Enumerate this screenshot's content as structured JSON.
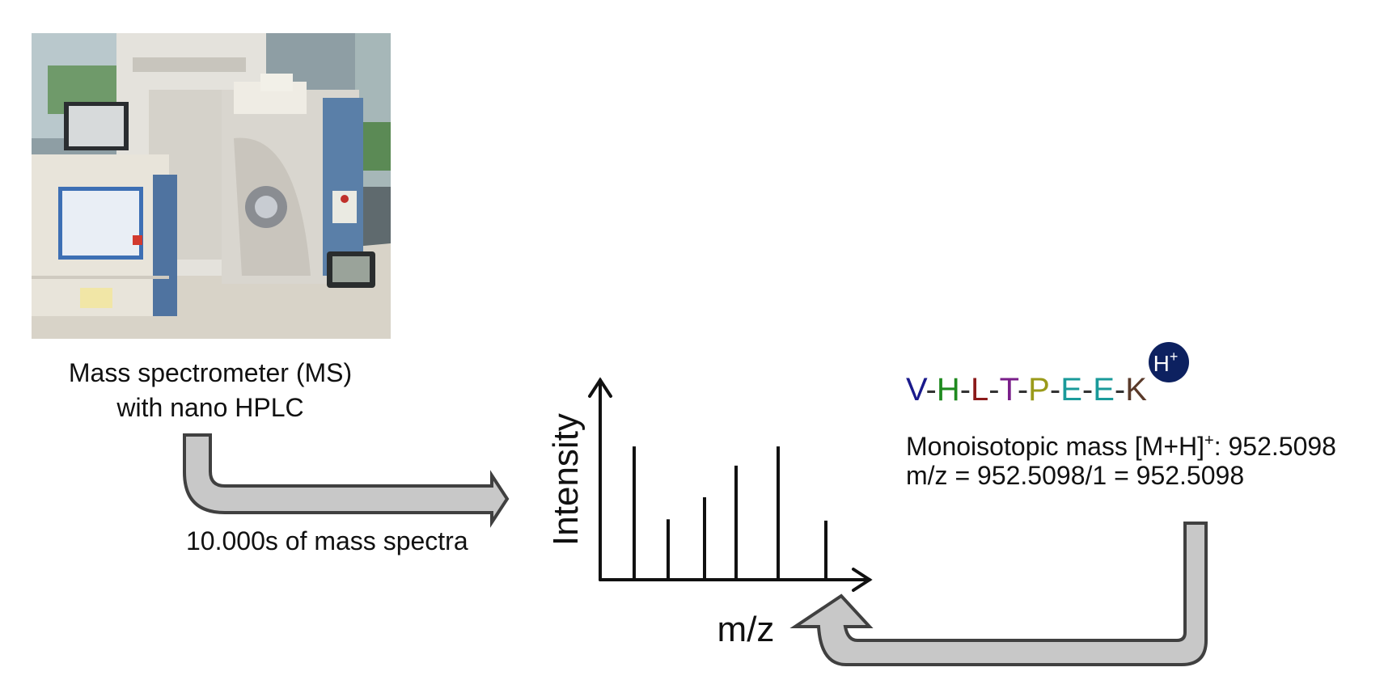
{
  "ms_caption": {
    "line1": "Mass spectrometer (MS)",
    "line2": "with nano HPLC"
  },
  "spectra_caption": "10.000s of mass spectra",
  "spectrum": {
    "y_axis_label": "Intensity",
    "x_axis_label": "m/z",
    "peaks_relative_intensity": [
      0.97,
      0.44,
      0.6,
      0.83,
      0.97,
      0.43
    ]
  },
  "peptide": {
    "residues": [
      {
        "letter": "V",
        "color": "#1a1a8c"
      },
      {
        "letter": "H",
        "color": "#1f8a1f"
      },
      {
        "letter": "L",
        "color": "#8b1a1a"
      },
      {
        "letter": "T",
        "color": "#7a1f8a"
      },
      {
        "letter": "P",
        "color": "#9a9a1a"
      },
      {
        "letter": "E",
        "color": "#1a9a9a"
      },
      {
        "letter": "E",
        "color": "#1a9a9a"
      },
      {
        "letter": "K",
        "color": "#5a3a2a"
      }
    ],
    "separator": "-",
    "separator_color": "#333333",
    "proton_badge": "H",
    "proton_badge_sup": "+",
    "badge_color": "#0d2160"
  },
  "mass_info": {
    "mono_prefix": "Monoisotopic mass [M+H]",
    "mono_sup": "+",
    "mono_suffix": ": 952.5098",
    "mz_line": "m/z = 952.5098/1 = 952.5098"
  },
  "colors": {
    "arrow_fill": "#c8c8c8",
    "arrow_stroke": "#404040"
  }
}
